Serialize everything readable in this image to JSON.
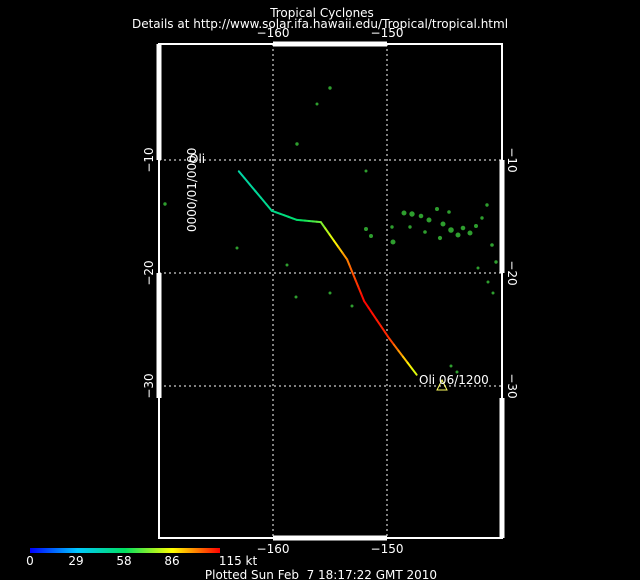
{
  "header": {
    "title": "Tropical Cyclones",
    "details": "Details at http://www.solar.ifa.hawaii.edu/Tropical/tropical.html"
  },
  "map": {
    "background": "#000000",
    "frame_color": "#ffffff",
    "land_color": "#2e9e2e",
    "grid": {
      "longitudes": [
        {
          "value": -160,
          "label": "−160"
        },
        {
          "value": -150,
          "label": "−150"
        }
      ],
      "latitudes": [
        {
          "value": -10,
          "label": "−10"
        },
        {
          "value": -20,
          "label": "−20"
        },
        {
          "value": -30,
          "label": "−30"
        }
      ]
    }
  },
  "storm": {
    "name": "Oli",
    "start_label": "0000/01/0000",
    "start_name": "Oli",
    "end_label": "Oli 06/1200",
    "track": [
      {
        "lon": -163.0,
        "lat": -11.0,
        "kt": 45
      },
      {
        "lon": -160.1,
        "lat": -14.5,
        "kt": 50
      },
      {
        "lon": -157.9,
        "lat": -15.3,
        "kt": 55
      },
      {
        "lon": -155.8,
        "lat": -15.5,
        "kt": 70
      },
      {
        "lon": -153.5,
        "lat": -18.8,
        "kt": 100
      },
      {
        "lon": -152.0,
        "lat": -22.5,
        "kt": 115
      },
      {
        "lon": -149.8,
        "lat": -25.8,
        "kt": 110
      },
      {
        "lon": -147.4,
        "lat": -29.0,
        "kt": 80
      }
    ]
  },
  "legend": {
    "ticks": [
      "0",
      "29",
      "58",
      "86",
      "115 kt"
    ],
    "colors": [
      "#0000ff",
      "#00c8ff",
      "#00e060",
      "#ffff00",
      "#ff0000"
    ]
  },
  "footer": {
    "plotted": "Plotted Sun Feb  7 18:17:22 GMT 2010"
  }
}
